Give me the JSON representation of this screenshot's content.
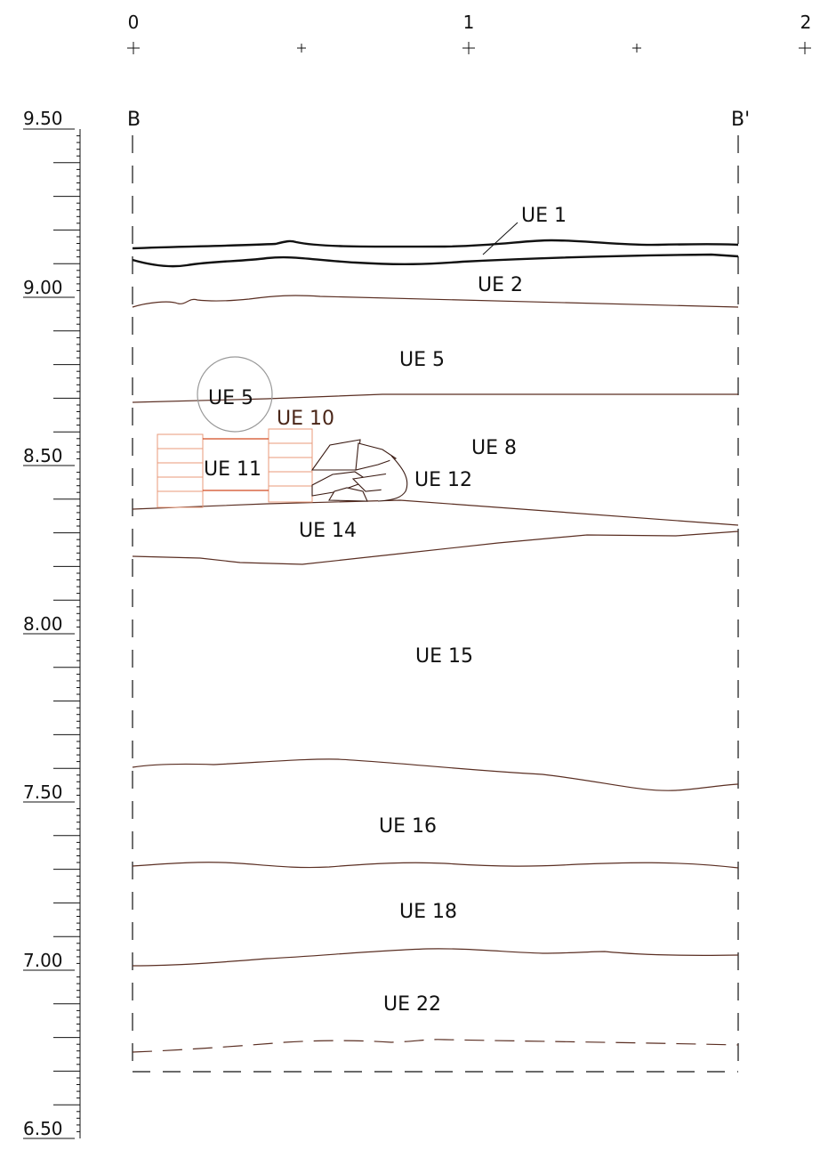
{
  "section": {
    "start_label": "B",
    "end_label": "B'"
  },
  "horizontal_scale": {
    "labels": [
      "0",
      "1",
      "2"
    ]
  },
  "elevation_scale": {
    "labels": [
      "9.50",
      "9.00",
      "8.50",
      "8.00",
      "7.50",
      "7.00",
      "6.50"
    ]
  },
  "units": [
    {
      "id": "ue1",
      "label": "UE 1"
    },
    {
      "id": "ue2",
      "label": "UE 2"
    },
    {
      "id": "ue5",
      "label": "UE 5"
    },
    {
      "id": "ue5b",
      "label": "UE 5"
    },
    {
      "id": "ue10",
      "label": "UE 10"
    },
    {
      "id": "ue8",
      "label": "UE 8"
    },
    {
      "id": "ue11",
      "label": "UE 11"
    },
    {
      "id": "ue12",
      "label": "UE 12"
    },
    {
      "id": "ue14",
      "label": "UE 14"
    },
    {
      "id": "ue15",
      "label": "UE 15"
    },
    {
      "id": "ue16",
      "label": "UE 16"
    },
    {
      "id": "ue18",
      "label": "UE 18"
    },
    {
      "id": "ue22",
      "label": "UE 22"
    }
  ],
  "colors": {
    "ink": "#111111",
    "boundary": "#5a2e22",
    "brick": "#e89a7a",
    "brick_mortar": "#d24a22",
    "circle": "#999999"
  }
}
